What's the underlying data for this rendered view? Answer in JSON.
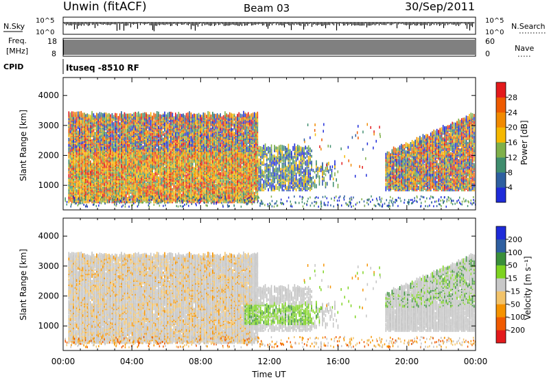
{
  "header": {
    "site": "Unwin (fitACF)",
    "beam": "Beam 03",
    "date": "30/Sep/2011"
  },
  "panels": {
    "nsky": {
      "label": "N.Sky",
      "ticks": [
        "10^5",
        "10^0"
      ],
      "right_label": "N.Search"
    },
    "freq": {
      "label_top": "Freq.",
      "label_bottom": "[MHz]",
      "left_ticks": [
        "18",
        "8"
      ],
      "right_ticks": [
        "60",
        "0"
      ],
      "right_label": "Nave"
    },
    "cpid": {
      "label": "CPID",
      "text": "Ituseq -8510 RF"
    }
  },
  "colors": {
    "power": [
      "#1e2bd9",
      "#2e5fa0",
      "#3f8d6e",
      "#7fb04a",
      "#f5b800",
      "#f18a00",
      "#ee5a00",
      "#e31a1c"
    ],
    "velocity": [
      "#e31a1c",
      "#f05a00",
      "#f59300",
      "#f2c36a",
      "#c8c8c8",
      "#7ed321",
      "#3a8f3a",
      "#2e5fa0",
      "#1e2bd9"
    ],
    "gray": "#c4c4c4"
  },
  "chart_data": [
    {
      "type": "heatmap",
      "name": "power",
      "xlabel": "",
      "ylabel": "Slant Range [km]",
      "ylim": [
        180,
        4600
      ],
      "yticks": [
        "1000",
        "2000",
        "3000",
        "4000"
      ],
      "xlim": [
        0,
        24
      ],
      "colorbar": {
        "label": "Power [dB]",
        "ticks": [
          "4",
          "8",
          "12",
          "16",
          "20",
          "24",
          "28"
        ],
        "range": [
          0,
          32
        ]
      },
      "regions": [
        {
          "t_start": 0.3,
          "t_end": 11.3,
          "range_min": 400,
          "range_max": 3300,
          "dominant": "mixed, stronger (16-28 dB) near 1000-2000 km"
        },
        {
          "t_start": 11.3,
          "t_end": 14.5,
          "range_min": 800,
          "range_max": 2200,
          "dominant": "weak-moderate (4-16 dB)"
        },
        {
          "t_start": 18.7,
          "t_end": 23.9,
          "range_min": 800,
          "range_max": 3300,
          "dominant": "mixed, 8-24 dB"
        }
      ]
    },
    {
      "type": "heatmap",
      "name": "velocity",
      "xlabel": "Time UT",
      "ylabel": "Slant Range [km]",
      "ylim": [
        180,
        4600
      ],
      "yticks": [
        "1000",
        "2000",
        "3000",
        "4000"
      ],
      "xlim": [
        0,
        24
      ],
      "xticks": [
        "00:00",
        "04:00",
        "08:00",
        "12:00",
        "16:00",
        "20:00",
        "00:00"
      ],
      "colorbar": {
        "label": "Velocity [m s⁻¹]",
        "ticks": [
          "200",
          "100",
          "50",
          "15",
          "-15",
          "-50",
          "-100",
          "-200"
        ]
      },
      "regions": [
        {
          "t_start": 0.3,
          "t_end": 11.3,
          "range_min": 400,
          "range_max": 3300,
          "dominant": "gray (ground scatter) with orange"
        },
        {
          "t_start": 10.5,
          "t_end": 15.0,
          "range_min": 1000,
          "range_max": 1700,
          "dominant": "green (15-50 m/s)"
        },
        {
          "t_start": 18.5,
          "t_end": 23.9,
          "range_min": 800,
          "range_max": 3300,
          "dominant": "gray with green"
        }
      ]
    }
  ]
}
